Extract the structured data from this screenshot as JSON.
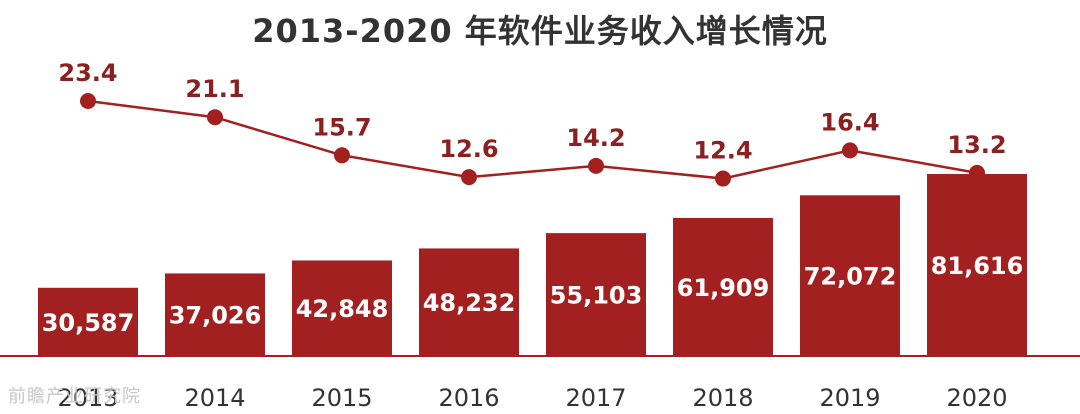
{
  "title": "2013-2020 年软件业务收入增长情况",
  "watermark": "前瞻产业研究院",
  "colors": {
    "bar": "#a32020",
    "line": "#a32020",
    "axis": "#a32020",
    "label": "#8b2020"
  },
  "chart_data": {
    "type": "bar",
    "title": "2013-2020 年软件业务收入增长情况",
    "categories": [
      "2013",
      "2014",
      "2015",
      "2016",
      "2017",
      "2018",
      "2019",
      "2020"
    ],
    "series": [
      {
        "type": "bar",
        "values": [
          30587,
          37026,
          42848,
          48232,
          55103,
          61909,
          72072,
          81616
        ]
      },
      {
        "type": "line",
        "values": [
          23.4,
          21.1,
          15.7,
          12.6,
          14.2,
          12.4,
          16.4,
          13.2
        ]
      }
    ],
    "bar_labels": [
      "30,587",
      "37,026",
      "42,848",
      "48,232",
      "55,103",
      "61,909",
      "72,072",
      "81,616"
    ],
    "line_labels": [
      "23.4",
      "21.1",
      "15.7",
      "12.6",
      "14.2",
      "12.4",
      "16.4",
      "13.2"
    ],
    "xlabel": "",
    "ylabel": "",
    "grid": false,
    "legend": "none"
  }
}
